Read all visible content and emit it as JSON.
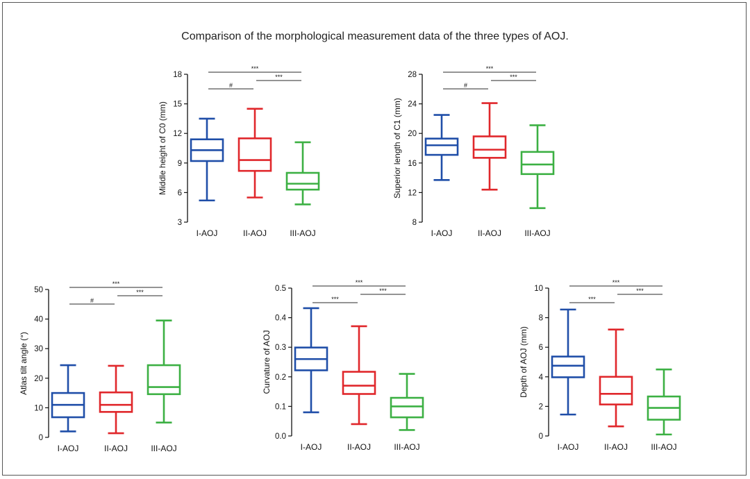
{
  "title": "Comparison of the morphological measurement data of the three types of AOJ.",
  "colors": {
    "I-AOJ": "#1f4ea8",
    "II-AOJ": "#e0272b",
    "III-AOJ": "#3cb043",
    "axis": "#111111",
    "sig": "#555555"
  },
  "chart_data": [
    {
      "type": "box",
      "ylabel": "Middle height of C0 (mm)",
      "ylim": [
        3,
        18
      ],
      "yticks": [
        3,
        6,
        9,
        12,
        15,
        18
      ],
      "yticklabels": [
        "3",
        "6",
        "9",
        "12",
        "15",
        "18"
      ],
      "categories": [
        "I-AOJ",
        "II-AOJ",
        "III-AOJ"
      ],
      "boxes": [
        {
          "min": 5.2,
          "q1": 9.2,
          "median": 10.3,
          "q3": 11.4,
          "max": 13.5
        },
        {
          "min": 5.5,
          "q1": 8.2,
          "median": 9.3,
          "q3": 11.5,
          "max": 14.5
        },
        {
          "min": 4.8,
          "q1": 6.3,
          "median": 6.9,
          "q3": 8.0,
          "max": 11.1
        }
      ],
      "significance": [
        {
          "from": 0,
          "to": 2,
          "label": "***"
        },
        {
          "from": 0,
          "to": 1,
          "label": "#"
        },
        {
          "from": 1,
          "to": 2,
          "label": "***"
        }
      ]
    },
    {
      "type": "box",
      "ylabel": "Superior length of C1 (mm)",
      "ylim": [
        8,
        28
      ],
      "yticks": [
        8,
        12,
        16,
        20,
        24,
        28
      ],
      "yticklabels": [
        "8",
        "12",
        "16",
        "20",
        "24",
        "28"
      ],
      "categories": [
        "I-AOJ",
        "II-AOJ",
        "III-AOJ"
      ],
      "boxes": [
        {
          "min": 13.7,
          "q1": 17.1,
          "median": 18.4,
          "q3": 19.3,
          "max": 22.5
        },
        {
          "min": 12.4,
          "q1": 16.7,
          "median": 17.8,
          "q3": 19.6,
          "max": 24.1
        },
        {
          "min": 9.9,
          "q1": 14.5,
          "median": 15.8,
          "q3": 17.5,
          "max": 21.1
        }
      ],
      "significance": [
        {
          "from": 0,
          "to": 2,
          "label": "***"
        },
        {
          "from": 0,
          "to": 1,
          "label": "#"
        },
        {
          "from": 1,
          "to": 2,
          "label": "***"
        }
      ]
    },
    {
      "type": "box",
      "ylabel": "Atlas tilt angle (°)",
      "ylim": [
        0,
        50
      ],
      "yticks": [
        0,
        10,
        20,
        30,
        40,
        50
      ],
      "yticklabels": [
        "0",
        "10",
        "20",
        "30",
        "40",
        "50"
      ],
      "categories": [
        "I-AOJ",
        "II-AOJ",
        "III-AOJ"
      ],
      "boxes": [
        {
          "min": 2.0,
          "q1": 6.8,
          "median": 11.0,
          "q3": 15.0,
          "max": 24.4
        },
        {
          "min": 1.4,
          "q1": 8.6,
          "median": 11.0,
          "q3": 15.2,
          "max": 24.2
        },
        {
          "min": 5.0,
          "q1": 14.6,
          "median": 17.0,
          "q3": 24.4,
          "max": 39.5
        }
      ],
      "significance": [
        {
          "from": 0,
          "to": 2,
          "label": "***"
        },
        {
          "from": 0,
          "to": 1,
          "label": "#"
        },
        {
          "from": 1,
          "to": 2,
          "label": "***"
        }
      ]
    },
    {
      "type": "box",
      "ylabel": "Curvature of AOJ",
      "ylim": [
        0,
        0.5
      ],
      "yticks": [
        0,
        0.1,
        0.2,
        0.3,
        0.4,
        0.5
      ],
      "yticklabels": [
        "0.0",
        "0.1",
        "0.2",
        "0.3",
        "0.4",
        "0.5"
      ],
      "categories": [
        "I-AOJ",
        "II-AOJ",
        "III-AOJ"
      ],
      "boxes": [
        {
          "min": 0.08,
          "q1": 0.222,
          "median": 0.26,
          "q3": 0.299,
          "max": 0.432
        },
        {
          "min": 0.04,
          "q1": 0.142,
          "median": 0.17,
          "q3": 0.217,
          "max": 0.371
        },
        {
          "min": 0.02,
          "q1": 0.063,
          "median": 0.1,
          "q3": 0.129,
          "max": 0.21
        }
      ],
      "significance": [
        {
          "from": 0,
          "to": 2,
          "label": "***"
        },
        {
          "from": 0,
          "to": 1,
          "label": "***"
        },
        {
          "from": 1,
          "to": 2,
          "label": "***"
        }
      ]
    },
    {
      "type": "box",
      "ylabel": "Depth of AOJ (mm)",
      "ylim": [
        0,
        10
      ],
      "yticks": [
        0,
        2,
        4,
        6,
        8,
        10
      ],
      "yticklabels": [
        "0",
        "2",
        "4",
        "6",
        "8",
        "10"
      ],
      "categories": [
        "I-AOJ",
        "II-AOJ",
        "III-AOJ"
      ],
      "boxes": [
        {
          "min": 1.45,
          "q1": 3.97,
          "median": 4.75,
          "q3": 5.37,
          "max": 8.55
        },
        {
          "min": 0.65,
          "q1": 2.13,
          "median": 2.85,
          "q3": 4.0,
          "max": 7.2
        },
        {
          "min": 0.1,
          "q1": 1.1,
          "median": 1.9,
          "q3": 2.67,
          "max": 4.5
        }
      ],
      "significance": [
        {
          "from": 0,
          "to": 2,
          "label": "***"
        },
        {
          "from": 0,
          "to": 1,
          "label": "***"
        },
        {
          "from": 1,
          "to": 2,
          "label": "***"
        }
      ]
    }
  ]
}
